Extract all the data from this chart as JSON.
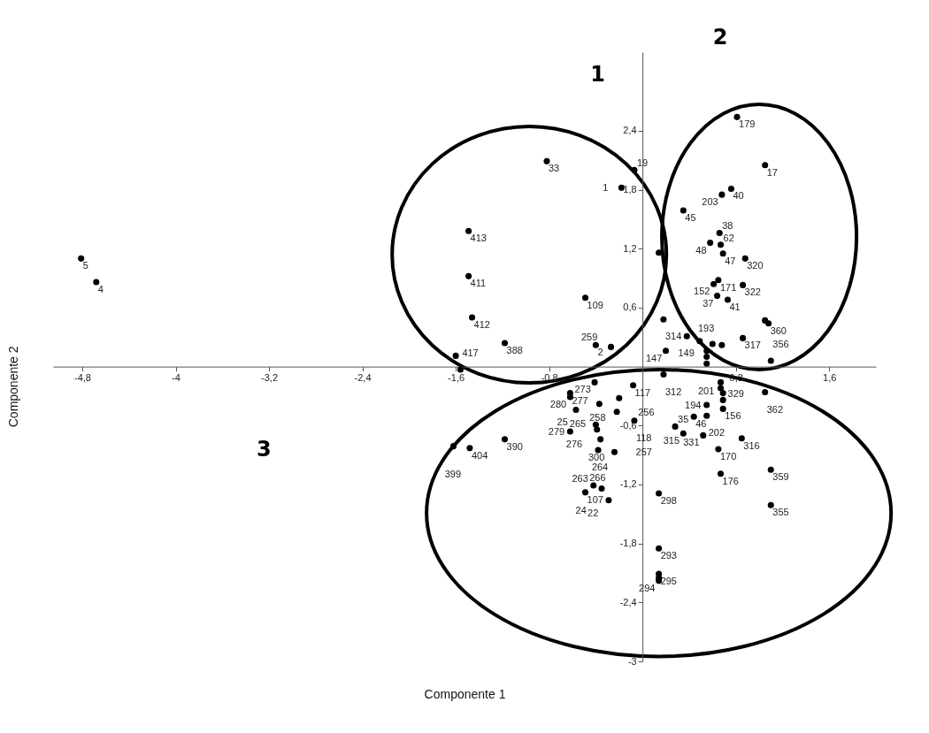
{
  "chart_data": {
    "type": "scatter",
    "xlabel": "Componente 1",
    "ylabel": "Componente 2",
    "marker": "circle",
    "grid": false,
    "xlim": [
      -5.05,
      2.0
    ],
    "ylim": [
      -3.0,
      3.2
    ],
    "xticks": [
      {
        "value": -4.8,
        "label": "-4,8"
      },
      -4,
      {
        "value": -3.2,
        "label": "-3,2"
      },
      {
        "value": -2.4,
        "label": "-2,4"
      },
      {
        "value": -1.6,
        "label": "-1,6"
      },
      {
        "value": -0.8,
        "label": "-0,8"
      },
      {
        "value": 0.8,
        "label": "0,8"
      },
      {
        "value": 1.6,
        "label": "1,6"
      }
    ],
    "yticks": [
      {
        "value": 2.4,
        "label": "2,4"
      },
      {
        "value": 1.8,
        "label": "1,8"
      },
      {
        "value": 1.2,
        "label": "1,2"
      },
      {
        "value": 0.6,
        "label": "0,6"
      },
      {
        "value": -0.6,
        "label": "-0,6"
      },
      {
        "value": -1.2,
        "label": "-1,2"
      },
      {
        "value": -1.8,
        "label": "-1,8"
      },
      {
        "value": -2.4,
        "label": "-2,4"
      },
      -3
    ],
    "x": [
      -4.81,
      -4.68,
      -0.82,
      -0.07,
      -0.18,
      -1.49,
      -1.49,
      -1.46,
      -1.18,
      -0.49,
      -0.4,
      -0.27,
      -1.6,
      -1.56,
      0.14,
      0.81,
      1.05,
      0.76,
      0.68,
      0.35,
      0.66,
      0.58,
      0.67,
      0.69,
      0.88,
      0.65,
      0.61,
      0.64,
      0.73,
      0.86,
      1.05,
      1.08,
      0.18,
      0.38,
      0.49,
      0.6,
      0.68,
      0.86,
      0.2,
      0.55,
      0.55,
      0.55,
      1.1,
      0.18,
      0.67,
      0.67,
      0.69,
      1.05,
      0.69,
      0.55,
      0.69,
      0.44,
      0.55,
      0.28,
      0.35,
      0.52,
      0.85,
      0.65,
      0.67,
      1.1,
      0.14,
      1.1,
      -0.62,
      -0.62,
      -0.41,
      -0.08,
      -0.2,
      -0.37,
      -0.57,
      -0.22,
      -0.07,
      -0.4,
      -0.39,
      -0.62,
      -0.36,
      -0.38,
      -0.24,
      -1.18,
      -1.48,
      -1.62,
      -0.49,
      -0.42,
      -0.35,
      -0.29,
      0.14,
      0.14,
      0.14,
      0.14
    ],
    "series": [
      {
        "color": "#000000",
        "values": [
          1.1,
          0.86,
          2.09,
          2.0,
          1.82,
          1.38,
          0.92,
          0.5,
          0.24,
          0.7,
          0.22,
          0.2,
          0.11,
          -0.03,
          1.16,
          2.54,
          2.05,
          1.81,
          1.75,
          1.59,
          1.36,
          1.26,
          1.24,
          1.15,
          1.1,
          0.88,
          0.84,
          0.72,
          0.68,
          0.83,
          0.47,
          0.44,
          0.48,
          0.31,
          0.26,
          0.23,
          0.22,
          0.29,
          0.16,
          0.16,
          0.1,
          0.03,
          0.06,
          -0.08,
          -0.16,
          -0.22,
          -0.27,
          -0.26,
          -0.34,
          -0.39,
          -0.43,
          -0.51,
          -0.5,
          -0.61,
          -0.68,
          -0.7,
          -0.73,
          -0.84,
          -1.09,
          -1.05,
          -1.29,
          -1.41,
          -0.27,
          -0.31,
          -0.16,
          -0.19,
          -0.32,
          -0.38,
          -0.44,
          -0.46,
          -0.55,
          -0.59,
          -0.64,
          -0.66,
          -0.74,
          -0.85,
          -0.87,
          -0.74,
          -0.83,
          -0.81,
          -1.28,
          -1.21,
          -1.24,
          -1.36,
          -1.85,
          -2.11,
          -2.15,
          -2.18
        ]
      }
    ],
    "annotations": [
      "1",
      "2",
      "3",
      {
        "text": "5",
        "x": -4.81,
        "y": 1.1
      },
      {
        "text": "4",
        "x": -4.68,
        "y": 0.86
      },
      {
        "text": "33",
        "x": -0.82,
        "y": 2.09
      },
      {
        "text": "19",
        "x": -0.07,
        "y": 2.0
      },
      {
        "text": "1",
        "x": -0.18,
        "y": 1.82
      },
      {
        "text": "413",
        "x": -1.49,
        "y": 1.38
      },
      {
        "text": "411",
        "x": -1.49,
        "y": 0.92
      },
      {
        "text": "412",
        "x": -1.46,
        "y": 0.5
      },
      {
        "text": "388",
        "x": -1.18,
        "y": 0.24
      },
      {
        "text": "109",
        "x": -0.49,
        "y": 0.7
      },
      {
        "text": "2",
        "x": -0.4,
        "y": 0.22
      },
      {
        "text": "259",
        "x": -0.27,
        "y": 0.2
      },
      {
        "text": "417",
        "x": -1.56,
        "y": -0.03
      },
      {
        "text": "179",
        "x": 0.81,
        "y": 2.54
      },
      {
        "text": "17",
        "x": 1.05,
        "y": 2.05
      },
      {
        "text": "40",
        "x": 0.76,
        "y": 1.81
      },
      {
        "text": "203",
        "x": 0.68,
        "y": 1.75
      },
      {
        "text": "45",
        "x": 0.35,
        "y": 1.59
      },
      {
        "text": "38",
        "x": 0.66,
        "y": 1.36
      },
      {
        "text": "48",
        "x": 0.58,
        "y": 1.26
      },
      {
        "text": "62",
        "x": 0.67,
        "y": 1.24
      },
      {
        "text": "47",
        "x": 0.69,
        "y": 1.15
      },
      {
        "text": "320",
        "x": 0.88,
        "y": 1.1
      },
      {
        "text": "171",
        "x": 0.65,
        "y": 0.88
      },
      {
        "text": "152",
        "x": 0.61,
        "y": 0.84
      },
      {
        "text": "37",
        "x": 0.64,
        "y": 0.72
      },
      {
        "text": "41",
        "x": 0.73,
        "y": 0.68
      },
      {
        "text": "322",
        "x": 0.86,
        "y": 0.83
      },
      {
        "text": "360",
        "x": 1.08,
        "y": 0.44
      },
      {
        "text": "314",
        "x": 0.18,
        "y": 0.48
      },
      {
        "text": "149",
        "x": 0.38,
        "y": 0.31
      },
      {
        "text": "317",
        "x": 0.86,
        "y": 0.29
      },
      {
        "text": "147",
        "x": 0.2,
        "y": 0.16
      },
      {
        "text": "193",
        "x": 0.55,
        "y": 0.1
      },
      {
        "text": "201",
        "x": 0.55,
        "y": 0.03
      },
      {
        "text": "356",
        "x": 1.1,
        "y": 0.06
      },
      {
        "text": "312",
        "x": 0.18,
        "y": -0.08
      },
      {
        "text": "329",
        "x": 0.67,
        "y": -0.16
      },
      {
        "text": "362",
        "x": 1.05,
        "y": -0.26
      },
      {
        "text": "194",
        "x": 0.55,
        "y": -0.39
      },
      {
        "text": "156",
        "x": 0.69,
        "y": -0.43
      },
      {
        "text": "46",
        "x": 0.44,
        "y": -0.51
      },
      {
        "text": "202",
        "x": 0.55,
        "y": -0.5
      },
      {
        "text": "35",
        "x": 0.28,
        "y": -0.61
      },
      {
        "text": "315",
        "x": 0.35,
        "y": -0.68
      },
      {
        "text": "331",
        "x": 0.52,
        "y": -0.7
      },
      {
        "text": "316",
        "x": 0.85,
        "y": -0.73
      },
      {
        "text": "170",
        "x": 0.65,
        "y": -0.84
      },
      {
        "text": "176",
        "x": 0.67,
        "y": -1.09
      },
      {
        "text": "359",
        "x": 1.1,
        "y": -1.05
      },
      {
        "text": "298",
        "x": 0.14,
        "y": -1.29
      },
      {
        "text": "355",
        "x": 1.1,
        "y": -1.41
      },
      {
        "text": "277",
        "x": -0.62,
        "y": -0.27
      },
      {
        "text": "280",
        "x": -0.62,
        "y": -0.31
      },
      {
        "text": "273",
        "x": -0.41,
        "y": -0.16
      },
      {
        "text": "117",
        "x": -0.08,
        "y": -0.19
      },
      {
        "text": "258",
        "x": -0.2,
        "y": -0.32
      },
      {
        "text": "265",
        "x": -0.37,
        "y": -0.38
      },
      {
        "text": "25",
        "x": -0.57,
        "y": -0.44
      },
      {
        "text": "256",
        "x": -0.22,
        "y": -0.46
      },
      {
        "text": "118",
        "x": -0.07,
        "y": -0.55
      },
      {
        "text": "276",
        "x": -0.4,
        "y": -0.59
      },
      {
        "text": "300",
        "x": -0.39,
        "y": -0.64
      },
      {
        "text": "279",
        "x": -0.62,
        "y": -0.66
      },
      {
        "text": "264",
        "x": -0.36,
        "y": -0.74
      },
      {
        "text": "266",
        "x": -0.38,
        "y": -0.85
      },
      {
        "text": "257",
        "x": -0.24,
        "y": -0.87
      },
      {
        "text": "390",
        "x": -1.18,
        "y": -0.74
      },
      {
        "text": "404",
        "x": -1.48,
        "y": -0.83
      },
      {
        "text": "399",
        "x": -1.62,
        "y": -0.81
      },
      {
        "text": "107",
        "x": -0.49,
        "y": -1.28
      },
      {
        "text": "22",
        "x": -0.42,
        "y": -1.21
      },
      {
        "text": "263",
        "x": -0.35,
        "y": -1.24
      },
      {
        "text": "24",
        "x": -0.29,
        "y": -1.36
      },
      {
        "text": "293",
        "x": 0.14,
        "y": -1.85
      },
      {
        "text": "295",
        "x": 0.14,
        "y": -2.11
      },
      {
        "text": "294",
        "x": 0.14,
        "y": -2.18
      }
    ]
  }
}
